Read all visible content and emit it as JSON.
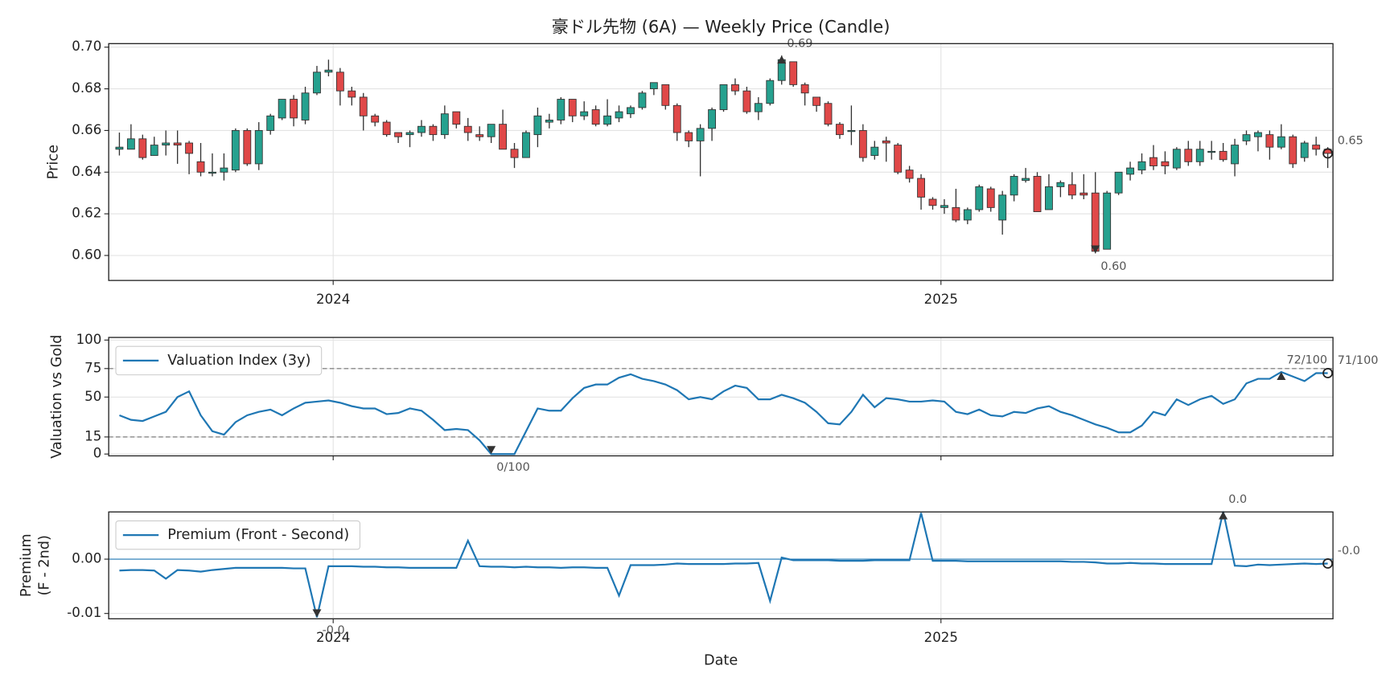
{
  "chart_data": [
    {
      "type": "candlestick",
      "title": "豪ドル先物 (6A) — Weekly Price (Candle)",
      "ylabel": [
        "Price"
      ],
      "x": [
        0,
        1,
        2,
        3,
        4,
        5,
        6,
        7,
        8,
        9,
        10,
        11,
        12,
        13,
        14,
        15,
        16,
        17,
        18,
        19,
        20,
        21,
        22,
        23,
        24,
        25,
        26,
        27,
        28,
        29,
        30,
        31,
        32,
        33,
        34,
        35,
        36,
        37,
        38,
        39,
        40,
        41,
        42,
        43,
        44,
        45,
        46,
        47,
        48,
        49,
        50,
        51,
        52,
        53,
        54,
        55,
        56,
        57,
        58,
        59,
        60,
        61,
        62,
        63,
        64,
        65,
        66,
        67,
        68,
        69,
        70,
        71,
        72,
        73,
        74,
        75,
        76,
        77,
        78,
        79,
        80,
        81,
        82,
        83,
        84,
        85,
        86,
        87,
        88,
        89,
        90,
        91,
        92,
        93,
        94,
        95,
        96,
        97,
        98,
        99,
        100,
        101,
        102,
        103,
        104
      ],
      "open": [
        0.651,
        0.651,
        0.656,
        0.648,
        0.653,
        0.654,
        0.654,
        0.645,
        0.64,
        0.64,
        0.641,
        0.66,
        0.644,
        0.66,
        0.666,
        0.675,
        0.665,
        0.678,
        0.688,
        0.688,
        0.679,
        0.676,
        0.667,
        0.664,
        0.659,
        0.658,
        0.659,
        0.662,
        0.658,
        0.669,
        0.662,
        0.658,
        0.657,
        0.663,
        0.651,
        0.647,
        0.658,
        0.664,
        0.665,
        0.675,
        0.667,
        0.67,
        0.663,
        0.666,
        0.668,
        0.671,
        0.68,
        0.682,
        0.672,
        0.659,
        0.655,
        0.661,
        0.67,
        0.682,
        0.679,
        0.669,
        0.673,
        0.684,
        0.693,
        0.682,
        0.676,
        0.673,
        0.663,
        0.66,
        0.66,
        0.648,
        0.655,
        0.653,
        0.641,
        0.637,
        0.627,
        0.623,
        0.623,
        0.617,
        0.622,
        0.632,
        0.617,
        0.629,
        0.636,
        0.638,
        0.622,
        0.633,
        0.634,
        0.63,
        0.63,
        0.603,
        0.63,
        0.639,
        0.641,
        0.647,
        0.645,
        0.642,
        0.651,
        0.645,
        0.65,
        0.65,
        0.644,
        0.655,
        0.657,
        0.658,
        0.652,
        0.657,
        0.647,
        0.653,
        0.651
      ],
      "high": [
        0.659,
        0.663,
        0.658,
        0.657,
        0.66,
        0.66,
        0.655,
        0.654,
        0.649,
        0.649,
        0.661,
        0.661,
        0.664,
        0.668,
        0.675,
        0.677,
        0.681,
        0.691,
        0.694,
        0.69,
        0.681,
        0.678,
        0.668,
        0.665,
        0.659,
        0.66,
        0.665,
        0.663,
        0.672,
        0.669,
        0.666,
        0.662,
        0.663,
        0.67,
        0.654,
        0.66,
        0.671,
        0.668,
        0.676,
        0.675,
        0.674,
        0.672,
        0.675,
        0.672,
        0.672,
        0.679,
        0.683,
        0.682,
        0.673,
        0.66,
        0.663,
        0.671,
        0.682,
        0.685,
        0.681,
        0.676,
        0.685,
        0.696,
        0.693,
        0.683,
        0.676,
        0.674,
        0.664,
        0.672,
        0.663,
        0.655,
        0.657,
        0.654,
        0.643,
        0.639,
        0.628,
        0.627,
        0.632,
        0.623,
        0.634,
        0.633,
        0.631,
        0.639,
        0.642,
        0.64,
        0.639,
        0.636,
        0.64,
        0.639,
        0.64,
        0.631,
        0.64,
        0.645,
        0.649,
        0.653,
        0.65,
        0.652,
        0.655,
        0.655,
        0.655,
        0.654,
        0.656,
        0.66,
        0.66,
        0.66,
        0.663,
        0.658,
        0.655,
        0.657,
        0.652
      ],
      "low": [
        0.648,
        0.651,
        0.646,
        0.648,
        0.648,
        0.644,
        0.639,
        0.638,
        0.638,
        0.636,
        0.64,
        0.643,
        0.641,
        0.658,
        0.665,
        0.662,
        0.663,
        0.677,
        0.686,
        0.672,
        0.672,
        0.66,
        0.662,
        0.657,
        0.654,
        0.652,
        0.657,
        0.655,
        0.656,
        0.661,
        0.655,
        0.655,
        0.654,
        0.651,
        0.642,
        0.647,
        0.652,
        0.661,
        0.663,
        0.664,
        0.665,
        0.662,
        0.662,
        0.664,
        0.666,
        0.67,
        0.677,
        0.67,
        0.655,
        0.652,
        0.638,
        0.655,
        0.669,
        0.677,
        0.668,
        0.665,
        0.672,
        0.682,
        0.681,
        0.672,
        0.669,
        0.662,
        0.656,
        0.653,
        0.645,
        0.646,
        0.645,
        0.639,
        0.635,
        0.622,
        0.622,
        0.62,
        0.616,
        0.615,
        0.621,
        0.621,
        0.61,
        0.626,
        0.635,
        0.621,
        0.622,
        0.628,
        0.627,
        0.627,
        0.601,
        0.603,
        0.629,
        0.636,
        0.639,
        0.641,
        0.639,
        0.641,
        0.643,
        0.643,
        0.646,
        0.645,
        0.638,
        0.653,
        0.65,
        0.646,
        0.651,
        0.642,
        0.645,
        0.648,
        0.642
      ],
      "close": [
        0.652,
        0.656,
        0.647,
        0.653,
        0.654,
        0.653,
        0.649,
        0.64,
        0.64,
        0.642,
        0.66,
        0.644,
        0.66,
        0.667,
        0.675,
        0.666,
        0.678,
        0.688,
        0.689,
        0.679,
        0.676,
        0.667,
        0.664,
        0.658,
        0.657,
        0.659,
        0.662,
        0.658,
        0.668,
        0.663,
        0.659,
        0.657,
        0.663,
        0.651,
        0.647,
        0.659,
        0.667,
        0.665,
        0.675,
        0.667,
        0.669,
        0.663,
        0.667,
        0.669,
        0.671,
        0.678,
        0.683,
        0.672,
        0.659,
        0.655,
        0.661,
        0.67,
        0.682,
        0.679,
        0.669,
        0.673,
        0.684,
        0.694,
        0.682,
        0.678,
        0.672,
        0.663,
        0.658,
        0.66,
        0.647,
        0.652,
        0.654,
        0.64,
        0.637,
        0.628,
        0.624,
        0.624,
        0.617,
        0.622,
        0.633,
        0.623,
        0.629,
        0.638,
        0.637,
        0.621,
        0.633,
        0.635,
        0.629,
        0.629,
        0.602,
        0.63,
        0.64,
        0.642,
        0.645,
        0.643,
        0.643,
        0.651,
        0.645,
        0.651,
        0.65,
        0.646,
        0.653,
        0.658,
        0.659,
        0.652,
        0.657,
        0.644,
        0.654,
        0.651,
        0.649
      ],
      "up_color": "#26a18f",
      "down_color": "#e04848",
      "xlim": [
        -0.92,
        104.45
      ],
      "xticks": [
        {
          "value": 18.4,
          "label": "2024"
        },
        {
          "value": 70.71,
          "label": "2025"
        }
      ],
      "ylim": [
        0.588,
        0.7017
      ],
      "yticks": [
        {
          "value": 0.6,
          "label": "0.60"
        },
        0.62,
        0.64,
        0.66,
        0.68,
        {
          "value": 0.7,
          "label": "0.70"
        }
      ],
      "grid": true,
      "annotations": {
        "max": "0.69",
        "min": "0.60",
        "last": "0.65"
      }
    },
    {
      "type": "line",
      "ylabel": [
        "Valuation vs Gold"
      ],
      "legend": "upper left",
      "xtick_labels": false,
      "series": [
        {
          "name": "Valuation Index (3y)",
          "color": "#1f77b4",
          "values": [
            34,
            30,
            29,
            33,
            37,
            50,
            55,
            34,
            20,
            17,
            28,
            34,
            37,
            39,
            34,
            40,
            45,
            46,
            47,
            45,
            42,
            40,
            40,
            35,
            36,
            40,
            38,
            30,
            21,
            22,
            21,
            12,
            0,
            0,
            0,
            20,
            40,
            38,
            38,
            49,
            58,
            61,
            61,
            67,
            70,
            66,
            64,
            61,
            56,
            48,
            50,
            48,
            55,
            60,
            58,
            48,
            48,
            52,
            49,
            45,
            37,
            27,
            26,
            37,
            52,
            41,
            49,
            48,
            46,
            46,
            47,
            46,
            37,
            35,
            39,
            34,
            33,
            37,
            36,
            40,
            42,
            37,
            34,
            30,
            26,
            23,
            19,
            19,
            25,
            37,
            34,
            48,
            43,
            48,
            51,
            44,
            48,
            62,
            66,
            66,
            72,
            68,
            64,
            71,
            71
          ]
        }
      ],
      "ylim": [
        -1.6,
        102.3
      ],
      "yticks": [
        0,
        15,
        50,
        75,
        100
      ],
      "hlines": [
        75,
        15
      ],
      "hline_style": "dashed",
      "grid": true,
      "annotations": {
        "max": "72/100",
        "min": "0/100",
        "last": "71/100"
      }
    },
    {
      "type": "line",
      "ylabel": [
        "Premium",
        "(F - 2nd)"
      ],
      "xlabel": "Date",
      "legend": "upper left",
      "series": [
        {
          "name": "Premium (Front - Second)",
          "color": "#1f77b4",
          "values": [
            -0.0021,
            -0.002,
            -0.002,
            -0.0021,
            -0.0036,
            -0.002,
            -0.0021,
            -0.0023,
            -0.002,
            -0.0018,
            -0.0016,
            -0.0016,
            -0.0016,
            -0.0016,
            -0.0016,
            -0.0017,
            -0.0017,
            -0.0107,
            -0.0013,
            -0.0013,
            -0.0013,
            -0.0014,
            -0.0014,
            -0.0015,
            -0.0015,
            -0.0016,
            -0.0016,
            -0.0016,
            -0.0016,
            -0.0016,
            0.0034,
            -0.0013,
            -0.0014,
            -0.0014,
            -0.0015,
            -0.0014,
            -0.0015,
            -0.0015,
            -0.0016,
            -0.0015,
            -0.0015,
            -0.0016,
            -0.0016,
            -0.0067,
            -0.0011,
            -0.0011,
            -0.0011,
            -0.001,
            -0.0008,
            -0.0009,
            -0.0009,
            -0.0009,
            -0.0009,
            -0.0008,
            -0.0008,
            -0.0007,
            -0.0077,
            0.0003,
            -0.0002,
            -0.0002,
            -0.0002,
            -0.0002,
            -0.0003,
            -0.0003,
            -0.0003,
            -0.0002,
            -0.0002,
            -0.0002,
            -0.0002,
            0.0085,
            -0.0003,
            -0.0003,
            -0.0003,
            -0.0004,
            -0.0004,
            -0.0004,
            -0.0004,
            -0.0004,
            -0.0004,
            -0.0004,
            -0.0004,
            -0.0004,
            -0.0005,
            -0.0005,
            -0.0006,
            -0.0008,
            -0.0008,
            -0.0007,
            -0.0008,
            -0.0008,
            -0.0009,
            -0.0009,
            -0.0009,
            -0.0009,
            -0.0009,
            0.0088,
            -0.0012,
            -0.0013,
            -0.001,
            -0.0011,
            -0.001,
            -0.0009,
            -0.0008,
            -0.0009,
            -0.0008
          ]
        }
      ],
      "ylim": [
        -0.01098,
        0.00869
      ],
      "yticks": [
        {
          "value": 0,
          "label": "0.00"
        },
        -0.01
      ],
      "hlines": [
        0
      ],
      "hline_style": "solid",
      "grid": true,
      "annotations": {
        "max": "0.0",
        "min": "-0.0",
        "last": "-0.0"
      }
    }
  ]
}
